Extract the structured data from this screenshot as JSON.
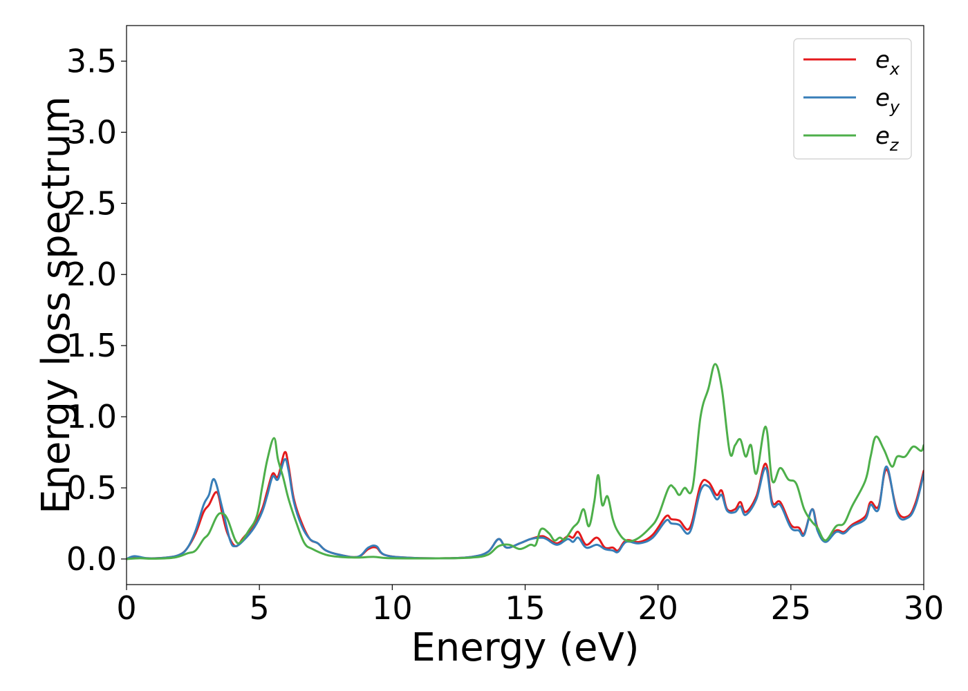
{
  "chart_data": {
    "type": "line",
    "title": "",
    "xlabel": "Energy (eV)",
    "ylabel": "Energy loss spectrum",
    "xlim": [
      0,
      30
    ],
    "ylim": [
      -0.18,
      3.75
    ],
    "x_ticks": [
      0,
      5,
      10,
      15,
      20,
      25,
      30
    ],
    "x_tick_labels": [
      "0",
      "5",
      "10",
      "15",
      "20",
      "25",
      "30"
    ],
    "y_ticks": [
      0.0,
      0.5,
      1.0,
      1.5,
      2.0,
      2.5,
      3.0,
      3.5
    ],
    "y_tick_labels": [
      "0.0",
      "0.5",
      "1.0",
      "1.5",
      "2.0",
      "2.5",
      "3.0",
      "3.5"
    ],
    "grid": false,
    "legend_position": "top-right",
    "series": [
      {
        "name": "e_x",
        "legend_base": "e",
        "legend_sub": "x",
        "color": "#e41a1c",
        "points": [
          [
            0,
            0.0
          ],
          [
            0.3,
            0.015
          ],
          [
            0.8,
            0.005
          ],
          [
            1.5,
            0.01
          ],
          [
            2.0,
            0.03
          ],
          [
            2.3,
            0.08
          ],
          [
            2.6,
            0.18
          ],
          [
            2.9,
            0.33
          ],
          [
            3.1,
            0.38
          ],
          [
            3.4,
            0.47
          ],
          [
            3.6,
            0.32
          ],
          [
            3.8,
            0.18
          ],
          [
            4.1,
            0.09
          ],
          [
            4.4,
            0.15
          ],
          [
            4.8,
            0.24
          ],
          [
            5.1,
            0.35
          ],
          [
            5.3,
            0.48
          ],
          [
            5.5,
            0.6
          ],
          [
            5.7,
            0.58
          ],
          [
            5.95,
            0.75
          ],
          [
            6.1,
            0.65
          ],
          [
            6.3,
            0.42
          ],
          [
            6.6,
            0.25
          ],
          [
            6.9,
            0.14
          ],
          [
            7.2,
            0.11
          ],
          [
            7.5,
            0.06
          ],
          [
            8.0,
            0.03
          ],
          [
            8.7,
            0.015
          ],
          [
            9.1,
            0.07
          ],
          [
            9.4,
            0.08
          ],
          [
            9.7,
            0.03
          ],
          [
            10.5,
            0.01
          ],
          [
            12.0,
            0.005
          ],
          [
            13.0,
            0.015
          ],
          [
            13.6,
            0.05
          ],
          [
            14.0,
            0.14
          ],
          [
            14.3,
            0.08
          ],
          [
            14.8,
            0.11
          ],
          [
            15.2,
            0.14
          ],
          [
            15.6,
            0.16
          ],
          [
            15.8,
            0.15
          ],
          [
            16.2,
            0.11
          ],
          [
            16.6,
            0.16
          ],
          [
            16.8,
            0.15
          ],
          [
            17.0,
            0.19
          ],
          [
            17.3,
            0.1
          ],
          [
            17.7,
            0.15
          ],
          [
            18.0,
            0.08
          ],
          [
            18.3,
            0.08
          ],
          [
            18.5,
            0.06
          ],
          [
            18.8,
            0.13
          ],
          [
            19.3,
            0.12
          ],
          [
            19.8,
            0.17
          ],
          [
            20.3,
            0.3
          ],
          [
            20.5,
            0.28
          ],
          [
            20.8,
            0.27
          ],
          [
            21.2,
            0.22
          ],
          [
            21.6,
            0.52
          ],
          [
            21.9,
            0.54
          ],
          [
            22.2,
            0.45
          ],
          [
            22.4,
            0.48
          ],
          [
            22.6,
            0.35
          ],
          [
            22.9,
            0.35
          ],
          [
            23.1,
            0.4
          ],
          [
            23.3,
            0.33
          ],
          [
            23.7,
            0.44
          ],
          [
            24.05,
            0.67
          ],
          [
            24.3,
            0.4
          ],
          [
            24.6,
            0.4
          ],
          [
            25.0,
            0.24
          ],
          [
            25.3,
            0.22
          ],
          [
            25.5,
            0.18
          ],
          [
            25.8,
            0.35
          ],
          [
            26.0,
            0.22
          ],
          [
            26.3,
            0.13
          ],
          [
            26.7,
            0.2
          ],
          [
            27.0,
            0.19
          ],
          [
            27.3,
            0.24
          ],
          [
            27.8,
            0.3
          ],
          [
            28.0,
            0.4
          ],
          [
            28.3,
            0.37
          ],
          [
            28.6,
            0.63
          ],
          [
            29.0,
            0.34
          ],
          [
            29.4,
            0.3
          ],
          [
            29.7,
            0.4
          ],
          [
            30.0,
            0.62
          ]
        ]
      },
      {
        "name": "e_y",
        "legend_base": "e",
        "legend_sub": "y",
        "color": "#377eb8",
        "points": [
          [
            0,
            0.0
          ],
          [
            0.3,
            0.02
          ],
          [
            0.8,
            0.005
          ],
          [
            1.5,
            0.01
          ],
          [
            2.0,
            0.03
          ],
          [
            2.3,
            0.08
          ],
          [
            2.6,
            0.2
          ],
          [
            2.9,
            0.38
          ],
          [
            3.1,
            0.45
          ],
          [
            3.3,
            0.56
          ],
          [
            3.6,
            0.36
          ],
          [
            3.9,
            0.13
          ],
          [
            4.1,
            0.09
          ],
          [
            4.4,
            0.13
          ],
          [
            4.8,
            0.22
          ],
          [
            5.1,
            0.33
          ],
          [
            5.3,
            0.45
          ],
          [
            5.5,
            0.58
          ],
          [
            5.7,
            0.56
          ],
          [
            5.95,
            0.7
          ],
          [
            6.1,
            0.62
          ],
          [
            6.3,
            0.4
          ],
          [
            6.6,
            0.23
          ],
          [
            6.9,
            0.14
          ],
          [
            7.2,
            0.11
          ],
          [
            7.5,
            0.06
          ],
          [
            8.0,
            0.03
          ],
          [
            8.7,
            0.015
          ],
          [
            9.1,
            0.08
          ],
          [
            9.4,
            0.09
          ],
          [
            9.7,
            0.03
          ],
          [
            10.5,
            0.01
          ],
          [
            12.0,
            0.005
          ],
          [
            13.0,
            0.015
          ],
          [
            13.6,
            0.05
          ],
          [
            14.0,
            0.14
          ],
          [
            14.3,
            0.08
          ],
          [
            14.8,
            0.11
          ],
          [
            15.2,
            0.14
          ],
          [
            15.6,
            0.15
          ],
          [
            15.8,
            0.14
          ],
          [
            16.2,
            0.1
          ],
          [
            16.6,
            0.14
          ],
          [
            16.8,
            0.12
          ],
          [
            17.0,
            0.15
          ],
          [
            17.3,
            0.08
          ],
          [
            17.7,
            0.1
          ],
          [
            18.0,
            0.07
          ],
          [
            18.3,
            0.06
          ],
          [
            18.5,
            0.05
          ],
          [
            18.8,
            0.12
          ],
          [
            19.3,
            0.11
          ],
          [
            19.8,
            0.15
          ],
          [
            20.3,
            0.27
          ],
          [
            20.5,
            0.25
          ],
          [
            20.8,
            0.24
          ],
          [
            21.2,
            0.19
          ],
          [
            21.6,
            0.48
          ],
          [
            21.9,
            0.51
          ],
          [
            22.2,
            0.42
          ],
          [
            22.4,
            0.45
          ],
          [
            22.6,
            0.34
          ],
          [
            22.9,
            0.33
          ],
          [
            23.1,
            0.37
          ],
          [
            23.3,
            0.31
          ],
          [
            23.7,
            0.42
          ],
          [
            24.05,
            0.64
          ],
          [
            24.3,
            0.38
          ],
          [
            24.6,
            0.38
          ],
          [
            25.0,
            0.22
          ],
          [
            25.3,
            0.2
          ],
          [
            25.5,
            0.17
          ],
          [
            25.8,
            0.35
          ],
          [
            26.0,
            0.2
          ],
          [
            26.3,
            0.12
          ],
          [
            26.7,
            0.19
          ],
          [
            27.0,
            0.18
          ],
          [
            27.3,
            0.23
          ],
          [
            27.8,
            0.28
          ],
          [
            28.0,
            0.38
          ],
          [
            28.3,
            0.35
          ],
          [
            28.6,
            0.65
          ],
          [
            29.0,
            0.32
          ],
          [
            29.4,
            0.29
          ],
          [
            29.7,
            0.38
          ],
          [
            30.0,
            0.6
          ]
        ]
      },
      {
        "name": "e_z",
        "legend_base": "e",
        "legend_sub": "z",
        "color": "#4daf4a",
        "points": [
          [
            0,
            0.0
          ],
          [
            0.5,
            0.005
          ],
          [
            1.0,
            0.002
          ],
          [
            1.8,
            0.01
          ],
          [
            2.3,
            0.04
          ],
          [
            2.6,
            0.06
          ],
          [
            2.9,
            0.14
          ],
          [
            3.1,
            0.18
          ],
          [
            3.4,
            0.3
          ],
          [
            3.6,
            0.32
          ],
          [
            3.8,
            0.28
          ],
          [
            4.1,
            0.13
          ],
          [
            4.3,
            0.12
          ],
          [
            4.6,
            0.2
          ],
          [
            4.9,
            0.3
          ],
          [
            5.1,
            0.5
          ],
          [
            5.3,
            0.7
          ],
          [
            5.55,
            0.85
          ],
          [
            5.7,
            0.7
          ],
          [
            5.9,
            0.57
          ],
          [
            6.1,
            0.42
          ],
          [
            6.4,
            0.25
          ],
          [
            6.7,
            0.11
          ],
          [
            7.0,
            0.07
          ],
          [
            7.5,
            0.03
          ],
          [
            8.0,
            0.015
          ],
          [
            8.7,
            0.01
          ],
          [
            9.3,
            0.015
          ],
          [
            10.0,
            0.005
          ],
          [
            12.0,
            0.005
          ],
          [
            13.0,
            0.01
          ],
          [
            13.6,
            0.03
          ],
          [
            14.0,
            0.09
          ],
          [
            14.4,
            0.1
          ],
          [
            14.8,
            0.07
          ],
          [
            15.2,
            0.1
          ],
          [
            15.4,
            0.1
          ],
          [
            15.6,
            0.21
          ],
          [
            15.9,
            0.18
          ],
          [
            16.1,
            0.13
          ],
          [
            16.3,
            0.15
          ],
          [
            16.5,
            0.14
          ],
          [
            16.8,
            0.22
          ],
          [
            17.0,
            0.26
          ],
          [
            17.2,
            0.35
          ],
          [
            17.4,
            0.23
          ],
          [
            17.6,
            0.4
          ],
          [
            17.75,
            0.59
          ],
          [
            17.9,
            0.38
          ],
          [
            18.1,
            0.44
          ],
          [
            18.3,
            0.28
          ],
          [
            18.5,
            0.19
          ],
          [
            18.8,
            0.13
          ],
          [
            19.2,
            0.14
          ],
          [
            19.7,
            0.22
          ],
          [
            20.0,
            0.3
          ],
          [
            20.4,
            0.5
          ],
          [
            20.6,
            0.5
          ],
          [
            20.8,
            0.45
          ],
          [
            21.0,
            0.5
          ],
          [
            21.3,
            0.5
          ],
          [
            21.6,
            1.0
          ],
          [
            21.9,
            1.2
          ],
          [
            22.15,
            1.37
          ],
          [
            22.4,
            1.2
          ],
          [
            22.7,
            0.75
          ],
          [
            22.9,
            0.8
          ],
          [
            23.1,
            0.84
          ],
          [
            23.3,
            0.72
          ],
          [
            23.5,
            0.8
          ],
          [
            23.7,
            0.6
          ],
          [
            24.05,
            0.93
          ],
          [
            24.3,
            0.55
          ],
          [
            24.6,
            0.64
          ],
          [
            24.9,
            0.56
          ],
          [
            25.2,
            0.53
          ],
          [
            25.5,
            0.35
          ],
          [
            25.8,
            0.26
          ],
          [
            26.0,
            0.22
          ],
          [
            26.3,
            0.13
          ],
          [
            26.7,
            0.23
          ],
          [
            27.0,
            0.25
          ],
          [
            27.3,
            0.37
          ],
          [
            27.8,
            0.55
          ],
          [
            28.0,
            0.72
          ],
          [
            28.2,
            0.86
          ],
          [
            28.5,
            0.77
          ],
          [
            28.8,
            0.65
          ],
          [
            29.0,
            0.72
          ],
          [
            29.3,
            0.72
          ],
          [
            29.6,
            0.79
          ],
          [
            29.9,
            0.76
          ],
          [
            30.0,
            0.8
          ]
        ]
      }
    ]
  }
}
